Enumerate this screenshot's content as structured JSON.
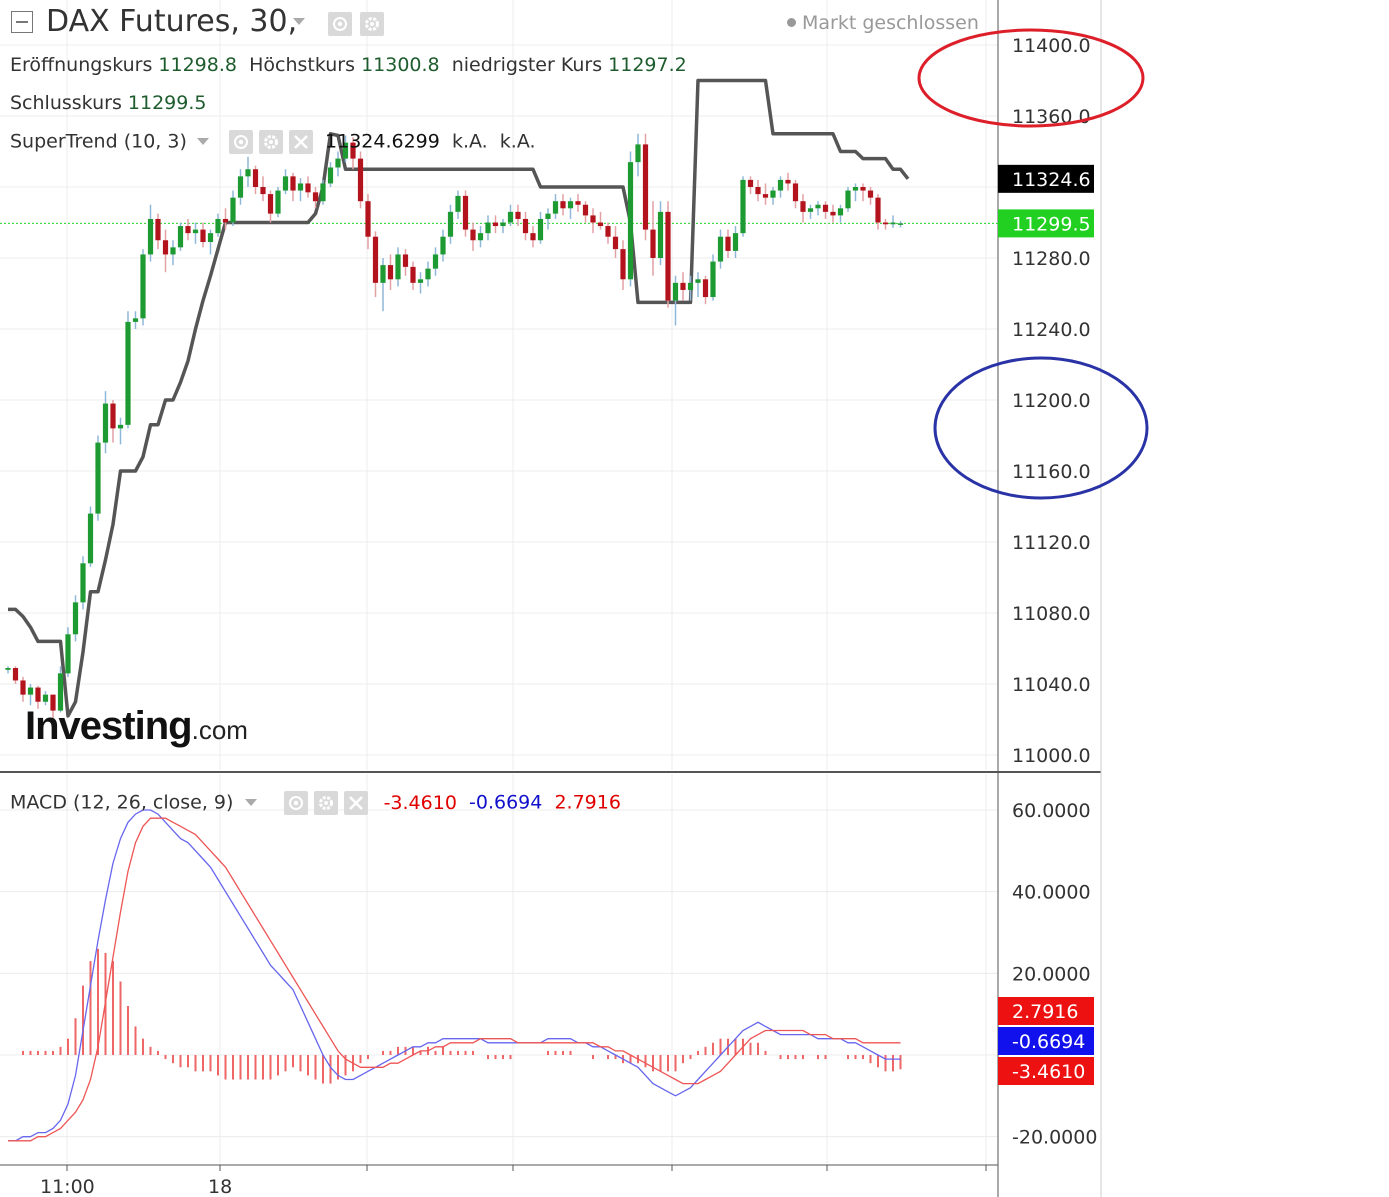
{
  "header": {
    "symbol": "DAX Futures, 30,",
    "market_status": "Markt geschlossen"
  },
  "ohlc": {
    "open_label": "Eröffnungskurs",
    "open_value": "11298.8",
    "high_label": "Höchstkurs",
    "high_value": "11300.8",
    "low_label": "niedrigster Kurs",
    "low_value": "11297.2",
    "close_label": "Schlusskurs",
    "close_value": "11299.5"
  },
  "supertrend": {
    "label": "SuperTrend (10, 3)",
    "value": "11324.6299",
    "na1": "k.A.",
    "na2": "k.A."
  },
  "macd": {
    "label": "MACD (12, 26, close, 9)",
    "hist_value": "-3.4610",
    "macd_value": "-0.6694",
    "signal_value": "2.7916"
  },
  "watermark": {
    "brand": "Investing",
    "suffix": ".com"
  },
  "chart_data": [
    {
      "type": "candlestick",
      "title": "DAX Futures, 30,",
      "y_ticks": [
        "11400.0",
        "11360.0",
        "11280.0",
        "11240.0",
        "11200.0",
        "11160.0",
        "11120.0",
        "11080.0",
        "11040.0",
        "11000.0"
      ],
      "y_tick_values": [
        11400,
        11360,
        11280,
        11240,
        11200,
        11160,
        11120,
        11080,
        11040,
        11000
      ],
      "ylim": [
        10980,
        11415
      ],
      "x_tick_labels": [
        "11:00",
        "18"
      ],
      "price_labels": {
        "supertrend": "11324.6",
        "last": "11299.5"
      },
      "last_price": 11299.5,
      "candles": [
        [
          11048,
          11050,
          11046,
          11049
        ],
        [
          11049,
          11050,
          11040,
          11042
        ],
        [
          11042,
          11044,
          11030,
          11034
        ],
        [
          11034,
          11040,
          11028,
          11038
        ],
        [
          11038,
          11039,
          11026,
          11030
        ],
        [
          11030,
          11036,
          11028,
          11034
        ],
        [
          11034,
          11034,
          11020,
          11025
        ],
        [
          11025,
          11050,
          11024,
          11046
        ],
        [
          11046,
          11072,
          11044,
          11068
        ],
        [
          11068,
          11090,
          11064,
          11086
        ],
        [
          11086,
          11112,
          11082,
          11108
        ],
        [
          11108,
          11140,
          11106,
          11136
        ],
        [
          11136,
          11180,
          11132,
          11176
        ],
        [
          11176,
          11205,
          11170,
          11198
        ],
        [
          11198,
          11200,
          11176,
          11184
        ],
        [
          11184,
          11190,
          11175,
          11186
        ],
        [
          11186,
          11250,
          11184,
          11244
        ],
        [
          11244,
          11250,
          11240,
          11246
        ],
        [
          11246,
          11285,
          11242,
          11282
        ],
        [
          11282,
          11310,
          11278,
          11302
        ],
        [
          11302,
          11305,
          11285,
          11290
        ],
        [
          11290,
          11296,
          11272,
          11282
        ],
        [
          11282,
          11290,
          11276,
          11286
        ],
        [
          11286,
          11300,
          11284,
          11298
        ],
        [
          11298,
          11302,
          11290,
          11294
        ],
        [
          11294,
          11300,
          11288,
          11296
        ],
        [
          11296,
          11300,
          11286,
          11289
        ],
        [
          11289,
          11296,
          11282,
          11294
        ],
        [
          11294,
          11305,
          11292,
          11302
        ],
        [
          11302,
          11308,
          11296,
          11300
        ],
        [
          11300,
          11318,
          11298,
          11314
        ],
        [
          11314,
          11330,
          11310,
          11326
        ],
        [
          11326,
          11337,
          11320,
          11330
        ],
        [
          11330,
          11332,
          11316,
          11320
        ],
        [
          11320,
          11326,
          11312,
          11316
        ],
        [
          11316,
          11318,
          11300,
          11305
        ],
        [
          11305,
          11320,
          11303,
          11318
        ],
        [
          11318,
          11330,
          11316,
          11326
        ],
        [
          11326,
          11328,
          11312,
          11318
        ],
        [
          11318,
          11325,
          11312,
          11322
        ],
        [
          11322,
          11326,
          11314,
          11317
        ],
        [
          11317,
          11320,
          11308,
          11312
        ],
        [
          11312,
          11324,
          11310,
          11322
        ],
        [
          11322,
          11334,
          11320,
          11331
        ],
        [
          11331,
          11340,
          11326,
          11336
        ],
        [
          11336,
          11349,
          11334,
          11345
        ],
        [
          11345,
          11348,
          11330,
          11336
        ],
        [
          11336,
          11340,
          11308,
          11312
        ],
        [
          11312,
          11316,
          11285,
          11292
        ],
        [
          11292,
          11295,
          11258,
          11266
        ],
        [
          11266,
          11280,
          11250,
          11276
        ],
        [
          11276,
          11282,
          11262,
          11268
        ],
        [
          11268,
          11286,
          11264,
          11282
        ],
        [
          11282,
          11285,
          11270,
          11275
        ],
        [
          11275,
          11278,
          11262,
          11266
        ],
        [
          11266,
          11272,
          11260,
          11268
        ],
        [
          11268,
          11278,
          11264,
          11274
        ],
        [
          11274,
          11286,
          11270,
          11282
        ],
        [
          11282,
          11296,
          11278,
          11292
        ],
        [
          11292,
          11310,
          11288,
          11306
        ],
        [
          11306,
          11318,
          11302,
          11315
        ],
        [
          11315,
          11318,
          11292,
          11296
        ],
        [
          11296,
          11300,
          11284,
          11290
        ],
        [
          11290,
          11298,
          11286,
          11294
        ],
        [
          11294,
          11304,
          11290,
          11300
        ],
        [
          11300,
          11304,
          11294,
          11298
        ],
        [
          11298,
          11302,
          11294,
          11300
        ],
        [
          11300,
          11310,
          11298,
          11306
        ],
        [
          11306,
          11310,
          11298,
          11302
        ],
        [
          11302,
          11306,
          11290,
          11294
        ],
        [
          11294,
          11298,
          11286,
          11290
        ],
        [
          11290,
          11306,
          11288,
          11302
        ],
        [
          11302,
          11308,
          11296,
          11305
        ],
        [
          11305,
          11316,
          11302,
          11312
        ],
        [
          11312,
          11316,
          11304,
          11308
        ],
        [
          11308,
          11314,
          11302,
          11312
        ],
        [
          11312,
          11316,
          11306,
          11310
        ],
        [
          11310,
          11312,
          11300,
          11304
        ],
        [
          11304,
          11308,
          11294,
          11300
        ],
        [
          11300,
          11306,
          11296,
          11298
        ],
        [
          11298,
          11300,
          11288,
          11292
        ],
        [
          11292,
          11298,
          11280,
          11285
        ],
        [
          11285,
          11290,
          11262,
          11268
        ],
        [
          11268,
          11340,
          11264,
          11334
        ],
        [
          11334,
          11350,
          11326,
          11344
        ],
        [
          11344,
          11350,
          11290,
          11296
        ],
        [
          11296,
          11312,
          11270,
          11280
        ],
        [
          11280,
          11312,
          11276,
          11306
        ],
        [
          11306,
          11312,
          11252,
          11256
        ],
        [
          11256,
          11270,
          11242,
          11266
        ],
        [
          11266,
          11272,
          11256,
          11262
        ],
        [
          11262,
          11270,
          11256,
          11266
        ],
        [
          11266,
          11272,
          11258,
          11268
        ],
        [
          11268,
          11270,
          11254,
          11258
        ],
        [
          11258,
          11282,
          11256,
          11278
        ],
        [
          11278,
          11296,
          11274,
          11292
        ],
        [
          11292,
          11296,
          11280,
          11284
        ],
        [
          11284,
          11298,
          11280,
          11294
        ],
        [
          11294,
          11326,
          11292,
          11324
        ],
        [
          11324,
          11326,
          11316,
          11320
        ],
        [
          11320,
          11324,
          11312,
          11316
        ],
        [
          11316,
          11322,
          11310,
          11314
        ],
        [
          11314,
          11320,
          11310,
          11318
        ],
        [
          11318,
          11326,
          11314,
          11324
        ],
        [
          11324,
          11328,
          11318,
          11322
        ],
        [
          11322,
          11324,
          11308,
          11312
        ],
        [
          11312,
          11316,
          11300,
          11306
        ],
        [
          11306,
          11310,
          11302,
          11308
        ],
        [
          11308,
          11312,
          11304,
          11310
        ],
        [
          11310,
          11312,
          11302,
          11306
        ],
        [
          11306,
          11310,
          11300,
          11304
        ],
        [
          11304,
          11310,
          11300,
          11308
        ],
        [
          11308,
          11320,
          11306,
          11318
        ],
        [
          11318,
          11322,
          11312,
          11320
        ],
        [
          11320,
          11322,
          11312,
          11318
        ],
        [
          11318,
          11320,
          11310,
          11314
        ],
        [
          11314,
          11316,
          11296,
          11300
        ],
        [
          11300,
          11302,
          11296,
          11299
        ],
        [
          11299,
          11304,
          11297,
          11300
        ],
        [
          11298.8,
          11300.8,
          11297.2,
          11299.5
        ]
      ],
      "supertrend": [
        11082,
        11082,
        11078,
        11072,
        11064,
        11064,
        11064,
        11064,
        11022,
        11030,
        11058,
        11092,
        11092,
        11110,
        11130,
        11160,
        11160,
        11160,
        11168,
        11186,
        11186,
        11200,
        11200,
        11210,
        11222,
        11240,
        11256,
        11270,
        11285,
        11300,
        11300,
        11300,
        11300,
        11300,
        11300,
        11300,
        11300,
        11300,
        11300,
        11300,
        11300,
        11305,
        11320,
        11350,
        11349,
        11330,
        11330,
        11330,
        11330,
        11330,
        11330,
        11330,
        11330,
        11330,
        11330,
        11330,
        11330,
        11330,
        11330,
        11330,
        11330,
        11330,
        11330,
        11330,
        11330,
        11330,
        11330,
        11330,
        11330,
        11330,
        11330,
        11320,
        11320,
        11320,
        11320,
        11320,
        11320,
        11320,
        11320,
        11320,
        11320,
        11320,
        11320,
        11300,
        11255,
        11255,
        11255,
        11255,
        11255,
        11255,
        11255,
        11255,
        11380,
        11380,
        11380,
        11380,
        11380,
        11380,
        11380,
        11380,
        11380,
        11380,
        11350,
        11350,
        11350,
        11350,
        11350,
        11350,
        11350,
        11350,
        11350,
        11340,
        11340,
        11340,
        11336,
        11336,
        11336,
        11336,
        11330,
        11330,
        11324.6
      ]
    },
    {
      "type": "macd",
      "title": "MACD (12, 26, close, 9)",
      "y_ticks": [
        "60.0000",
        "40.0000",
        "20.0000",
        "-20.0000"
      ],
      "y_tick_values": [
        60,
        40,
        20,
        -20
      ],
      "ylim": [
        -27,
        64
      ],
      "value_labels": {
        "signal": "2.7916",
        "macd": "-0.6694",
        "histogram": "-3.4610"
      },
      "macd": [
        -21,
        -21,
        -20,
        -20,
        -19,
        -19,
        -18,
        -16,
        -12,
        -5,
        6,
        17,
        28,
        38,
        47,
        53,
        57,
        59,
        60,
        60,
        59,
        57,
        55,
        53,
        52,
        50,
        48,
        46,
        43,
        40,
        37,
        34,
        31,
        28,
        25,
        22,
        20,
        18,
        16,
        12,
        8,
        4,
        0,
        -3,
        -5,
        -6,
        -6,
        -5,
        -4,
        -3,
        -2,
        -1,
        0,
        1,
        2,
        2,
        3,
        3,
        4,
        4,
        4,
        4,
        4,
        4,
        3,
        3,
        3,
        3,
        3,
        3,
        3,
        3,
        4,
        4,
        4,
        4,
        3,
        3,
        2,
        2,
        1,
        0,
        -1,
        -2,
        -3,
        -5,
        -7,
        -8,
        -9,
        -10,
        -9,
        -8,
        -6,
        -4,
        -2,
        0,
        2,
        4,
        6,
        7,
        8,
        7,
        6,
        5,
        5,
        5,
        5,
        5,
        4,
        4,
        4,
        4,
        3,
        3,
        2,
        1,
        0,
        -1,
        -1,
        -1
      ],
      "signal": [
        -21,
        -21,
        -21,
        -21,
        -20,
        -20,
        -19,
        -18,
        -16,
        -14,
        -11,
        -6,
        2,
        13,
        24,
        35,
        45,
        52,
        56,
        58,
        58,
        58,
        57,
        56,
        55,
        54,
        52,
        50,
        48,
        46,
        43,
        40,
        37,
        34,
        31,
        28,
        25,
        22,
        19,
        16,
        13,
        10,
        7,
        4,
        1,
        -1,
        -2,
        -3,
        -3,
        -3,
        -3,
        -2,
        -2,
        -1,
        0,
        1,
        1,
        2,
        2,
        3,
        3,
        3,
        3,
        4,
        4,
        4,
        4,
        4,
        3,
        3,
        3,
        3,
        3,
        3,
        3,
        3,
        3,
        3,
        3,
        2,
        2,
        1,
        1,
        0,
        -1,
        -2,
        -3,
        -4,
        -5,
        -6,
        -7,
        -7,
        -7,
        -6,
        -5,
        -4,
        -2,
        0,
        2,
        4,
        5,
        6,
        6,
        6,
        6,
        6,
        6,
        5,
        5,
        5,
        4,
        4,
        4,
        4,
        3,
        3,
        3,
        3,
        3,
        3
      ],
      "histogram": [
        0,
        0,
        1,
        1,
        1,
        1,
        1,
        2,
        4,
        9,
        17,
        23,
        26,
        25,
        23,
        18,
        12,
        7,
        4,
        2,
        1,
        -1,
        -2,
        -3,
        -3,
        -4,
        -4,
        -4,
        -5,
        -6,
        -6,
        -6,
        -6,
        -6,
        -6,
        -6,
        -5,
        -4,
        -3,
        -4,
        -5,
        -6,
        -7,
        -7,
        -6,
        -5,
        -4,
        -2,
        -1,
        0,
        1,
        1,
        2,
        2,
        2,
        1,
        2,
        1,
        2,
        1,
        1,
        1,
        1,
        0,
        -1,
        -1,
        -1,
        -1,
        0,
        0,
        0,
        0,
        1,
        1,
        1,
        1,
        0,
        0,
        -1,
        0,
        -1,
        -1,
        -2,
        -2,
        -2,
        -3,
        -4,
        -4,
        -4,
        -4,
        -2,
        -1,
        1,
        2,
        3,
        4,
        4,
        4,
        4,
        3,
        3,
        1,
        0,
        -1,
        -1,
        -1,
        -1,
        0,
        -1,
        -1,
        0,
        0,
        -1,
        -1,
        -1,
        -2,
        -3,
        -4,
        -4,
        -3.5
      ],
      "x_tick_labels": [
        "11:00",
        "18"
      ]
    }
  ],
  "colors": {
    "up": "#1e9a32",
    "down": "#b3131c",
    "supertrend": "#555555",
    "macd": "#6666ee",
    "signal": "#ee5555",
    "histogram": "#ee6666",
    "annot_red": "#dd1f2a",
    "annot_blue": "#2a33a6"
  }
}
